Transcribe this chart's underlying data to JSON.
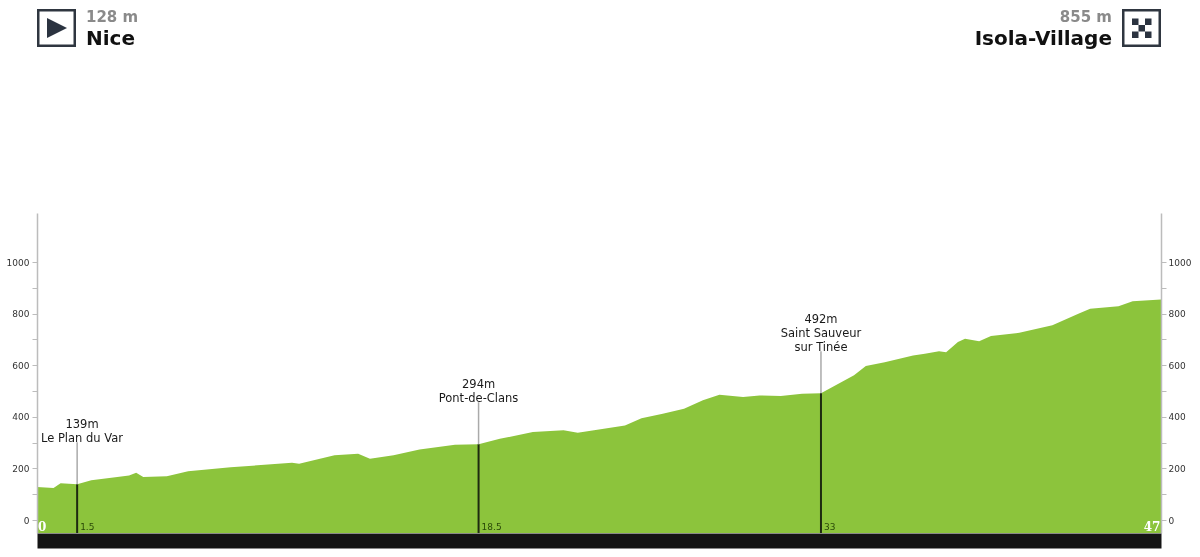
{
  "chart_data": {
    "type": "area",
    "x": [
      -0.2,
      0.5,
      0.8,
      1.5,
      2.1,
      3.2,
      3.7,
      4.0,
      4.3,
      5.3,
      6.2,
      8.0,
      10.6,
      10.9,
      12.4,
      13.4,
      13.9,
      14.9,
      16.0,
      17.5,
      18.5,
      19.4,
      20.8,
      22.1,
      22.7,
      24.7,
      25.4,
      26.3,
      27.2,
      28.0,
      28.7,
      29.7,
      30.4,
      31.3,
      32.2,
      33.0,
      34.4,
      34.9,
      35.7,
      36.9,
      37.4,
      38.0,
      38.3,
      38.8,
      39.1,
      39.7,
      40.2,
      41.4,
      42.8,
      43.9,
      44.4,
      45.6,
      46.2,
      47.4
    ],
    "values": [
      128,
      124,
      143,
      139,
      154,
      167,
      173,
      183,
      167,
      170,
      189,
      205,
      222,
      218,
      251,
      257,
      238,
      251,
      274,
      292,
      294,
      315,
      341,
      348,
      338,
      367,
      395,
      412,
      431,
      464,
      486,
      477,
      483,
      481,
      490,
      492,
      561,
      597,
      612,
      638,
      645,
      654,
      650,
      690,
      703,
      693,
      713,
      726,
      755,
      800,
      819,
      829,
      848,
      855
    ],
    "color": "#8cc43c",
    "xlim": [
      -0.2,
      47.4
    ],
    "xticks": [
      0,
      47
    ],
    "ylim": [
      -50,
      1190
    ],
    "yticks": [
      0,
      {
        "value": 100,
        "label": null
      },
      200,
      {
        "value": 300,
        "label": null
      },
      400,
      {
        "value": 500,
        "label": null
      },
      600,
      {
        "value": 700,
        "label": null
      },
      800,
      {
        "value": 900,
        "label": null
      },
      1000
    ],
    "y2lim": [
      -50,
      1190
    ],
    "y2ticks": [
      0,
      {
        "value": 100,
        "label": null
      },
      200,
      {
        "value": 300,
        "label": null
      },
      400,
      {
        "value": 500,
        "label": null
      },
      600,
      {
        "value": 700,
        "label": null
      },
      800,
      {
        "value": 900,
        "label": null
      },
      1000
    ],
    "bands": [
      {
        "axis": "y",
        "from": -50,
        "to": 0,
        "color": "#8cc43c"
      }
    ],
    "ref_lines": [
      {
        "axis": "x",
        "value": 1.5,
        "label": "1.5",
        "color": "#1e2a10"
      },
      {
        "axis": "x",
        "value": 18.5,
        "label": "18.5",
        "color": "#1e2a10"
      },
      {
        "axis": "x",
        "value": 33,
        "label": "33",
        "color": "#1e2a10"
      }
    ],
    "annotations": [
      "128 m",
      "Nice",
      "855 m",
      "Isola-Village",
      {
        "text": "139m\nLe Plan du Var",
        "x": 1.5,
        "y": 139
      },
      {
        "text": "294m\nPont-de-Clans",
        "x": 18.5,
        "y": 294
      },
      {
        "text": "492m\nSaint Sauveur\nsur Tinée",
        "x": 33,
        "y": 492
      }
    ]
  }
}
